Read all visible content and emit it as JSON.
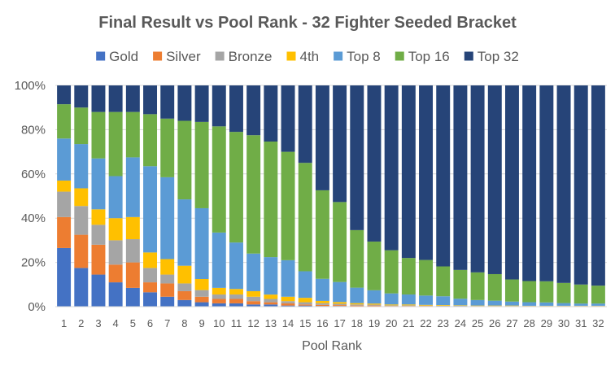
{
  "chart_data": {
    "type": "bar",
    "stacked": true,
    "percent_stacked": true,
    "title": "Final Result vs Pool Rank - 32 Fighter Seeded Bracket",
    "xlabel": "Pool Rank",
    "ylabel": "",
    "ylim": [
      0,
      100
    ],
    "y_ticks": [
      "0%",
      "20%",
      "40%",
      "60%",
      "80%",
      "100%"
    ],
    "legend_position": "top",
    "grid": true,
    "categories": [
      "1",
      "2",
      "3",
      "4",
      "5",
      "6",
      "7",
      "8",
      "9",
      "10",
      "11",
      "12",
      "13",
      "14",
      "15",
      "16",
      "17",
      "18",
      "19",
      "20",
      "21",
      "22",
      "23",
      "24",
      "25",
      "26",
      "27",
      "28",
      "29",
      "30",
      "31",
      "32"
    ],
    "series": [
      {
        "name": "Gold",
        "color": "#4472C4",
        "values": [
          26.5,
          17.5,
          14.5,
          11,
          8.5,
          6.5,
          4.5,
          3,
          2,
          1.5,
          1.5,
          1,
          1,
          0.5,
          0.5,
          0.3,
          0.3,
          0.2,
          0.2,
          0.1,
          0.1,
          0.1,
          0.1,
          0.1,
          0.1,
          0.1,
          0.1,
          0.1,
          0.1,
          0.1,
          0.1,
          0.1
        ]
      },
      {
        "name": "Silver",
        "color": "#ED7D31",
        "values": [
          14,
          15,
          13.5,
          8,
          11.5,
          4.5,
          6,
          4,
          2.5,
          2,
          2,
          1.5,
          1,
          1,
          0.5,
          0.5,
          0.4,
          0.3,
          0.3,
          0.2,
          0.2,
          0.2,
          0.1,
          0.1,
          0.1,
          0.1,
          0.1,
          0.1,
          0.1,
          0.1,
          0.1,
          0.1
        ]
      },
      {
        "name": "Bronze",
        "color": "#A5A5A5",
        "values": [
          11.5,
          13,
          9,
          11,
          10.5,
          6.5,
          4,
          3.5,
          3,
          2,
          2,
          2,
          1.5,
          1,
          1,
          0.8,
          0.6,
          0.5,
          0.4,
          0.3,
          0.3,
          0.2,
          0.2,
          0.2,
          0.1,
          0.1,
          0.1,
          0.1,
          0.1,
          0.1,
          0.1,
          0.1
        ]
      },
      {
        "name": "4th",
        "color": "#FFC000",
        "values": [
          5,
          8,
          7,
          10,
          10,
          7,
          7,
          8,
          5,
          3,
          2.5,
          2.5,
          2,
          2,
          2,
          1,
          0.8,
          0.6,
          0.5,
          0.4,
          0.4,
          0.3,
          0.3,
          0.2,
          0.2,
          0.2,
          0.2,
          0.1,
          0.1,
          0.1,
          0.1,
          0.1
        ]
      },
      {
        "name": "Top 8",
        "color": "#5B9BD5",
        "values": [
          19,
          20,
          23,
          19,
          27,
          39,
          37,
          30,
          32,
          25,
          21,
          17,
          17,
          16.5,
          12,
          10,
          9,
          7,
          6,
          5,
          4.5,
          4.2,
          4,
          3,
          2.5,
          2.2,
          1.8,
          1.6,
          1.5,
          1.2,
          1,
          1
        ]
      },
      {
        "name": "Top 16",
        "color": "#70AD47",
        "values": [
          15.5,
          16.5,
          21,
          29,
          20.5,
          23.5,
          26.5,
          35.5,
          39,
          48,
          50,
          53.5,
          52.5,
          49,
          49,
          40,
          36,
          26,
          22,
          19.5,
          16.5,
          16,
          13.5,
          13,
          12.5,
          12,
          10,
          9.5,
          9.5,
          9,
          8.5,
          8
        ]
      },
      {
        "name": "Top 32",
        "color": "#264478",
        "values": [
          8.5,
          10,
          12,
          12,
          12,
          13,
          15,
          16,
          16.5,
          18.5,
          21,
          22.5,
          25.5,
          30,
          35,
          47.4,
          52.5,
          65.4,
          70.5,
          74.5,
          78,
          78.5,
          81.8,
          83.4,
          84.5,
          85.2,
          87.7,
          87.9,
          88,
          88.2,
          89,
          89.5
        ]
      }
    ]
  }
}
